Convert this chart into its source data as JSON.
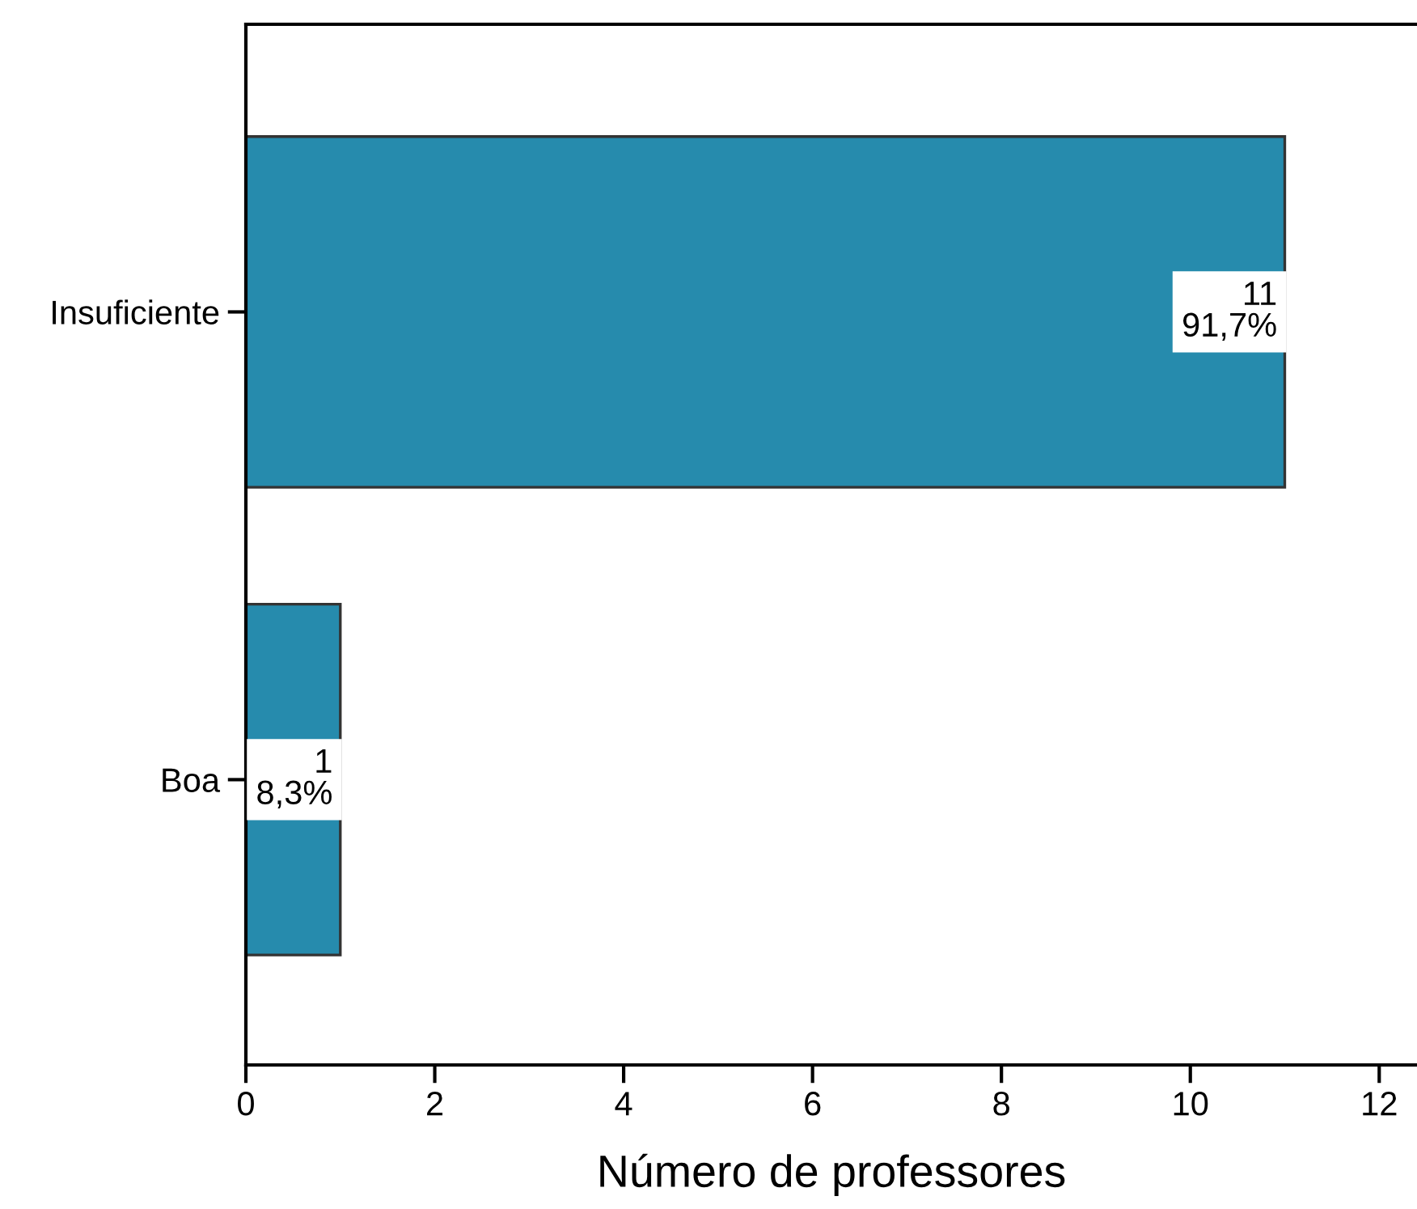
{
  "chart_data": {
    "type": "bar",
    "orientation": "horizontal",
    "categories": [
      "Insuficiente",
      "Boa"
    ],
    "values": [
      11,
      1
    ],
    "color": "#268bad",
    "value_labels": [
      "11\n91,7%",
      "1\n8,3%"
    ],
    "xlabel": "Número de professores",
    "xlim": [
      0,
      12.4
    ],
    "xticks": [
      0,
      2,
      4,
      6,
      8,
      10,
      12
    ],
    "grid": false,
    "legend": false
  }
}
